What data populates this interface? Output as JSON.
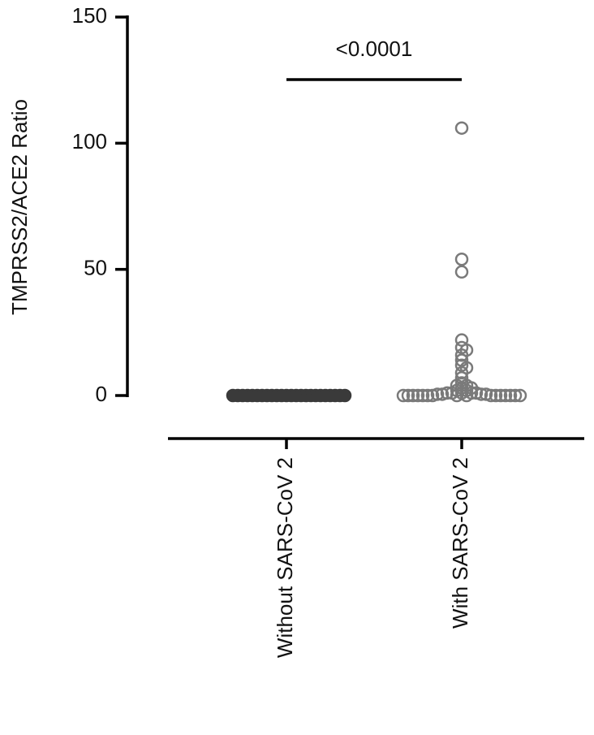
{
  "chart_data": {
    "type": "strip",
    "y_label": "TMPRSS2/ACE2 Ratio",
    "annotation": "<0.0001",
    "categories": [
      "Without SARS-CoV 2",
      "With SARS-CoV 2"
    ],
    "colors": [
      "#3a3a3a",
      "#7a7a7a"
    ],
    "markers": [
      "filled",
      "open"
    ],
    "values": [
      [
        0,
        0,
        0,
        0,
        0,
        0,
        0,
        0,
        0,
        0,
        0,
        0,
        0,
        0,
        0,
        0,
        0,
        0,
        0,
        0,
        0,
        0,
        0,
        0
      ],
      [
        106,
        54,
        49,
        22,
        19,
        18,
        16,
        14,
        12,
        11,
        9,
        7,
        5,
        4,
        4,
        3,
        3,
        2,
        2,
        1,
        1,
        1,
        1,
        1,
        0.5,
        0.5,
        0.5,
        0.5,
        0,
        0,
        0,
        0,
        0,
        0,
        0,
        0,
        0,
        0,
        0,
        0,
        0,
        0,
        0,
        0
      ]
    ],
    "ylim": [
      0,
      150
    ],
    "yticks": [
      0,
      50,
      100,
      150
    ]
  }
}
